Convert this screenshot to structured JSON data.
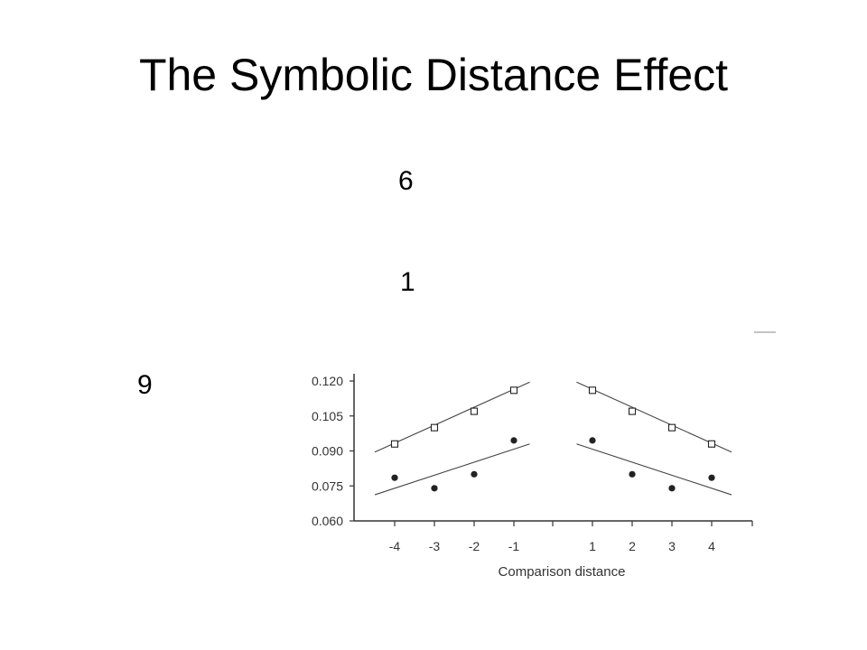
{
  "slide": {
    "title": "The Symbolic Distance Effect",
    "digits": [
      "6",
      "1",
      "9"
    ]
  },
  "chart_data": {
    "type": "scatter",
    "title": "",
    "xlabel": "Comparison distance",
    "ylabel": "",
    "x_ticks": [
      "-4",
      "-3",
      "-2",
      "-1",
      "1",
      "2",
      "3",
      "4"
    ],
    "y_ticks": [
      "0.120",
      "0.105",
      "0.090",
      "0.075",
      "0.060"
    ],
    "ylim": [
      0.06,
      0.12
    ],
    "grid": false,
    "legend": "none",
    "series": [
      {
        "marker": "open-square",
        "x": [
          -4,
          -3,
          -2,
          -1,
          1,
          2,
          3,
          4
        ],
        "y": [
          0.093,
          0.1,
          0.107,
          0.116,
          0.116,
          0.107,
          0.1,
          0.093
        ],
        "fit_left": {
          "x": [
            -4.5,
            -0.6
          ],
          "y": [
            0.0895,
            0.1195
          ]
        },
        "fit_right": {
          "x": [
            0.6,
            4.5
          ],
          "y": [
            0.1195,
            0.0895
          ]
        }
      },
      {
        "marker": "filled-circle",
        "x": [
          -4,
          -3,
          -2,
          -1,
          1,
          2,
          3,
          4
        ],
        "y": [
          0.0785,
          0.074,
          0.08,
          0.0945,
          0.0945,
          0.08,
          0.074,
          0.0785
        ],
        "fit_left": {
          "x": [
            -4.5,
            -0.6
          ],
          "y": [
            0.0712,
            0.093
          ]
        },
        "fit_right": {
          "x": [
            0.6,
            4.5
          ],
          "y": [
            0.093,
            0.0712
          ]
        }
      }
    ],
    "colors": {
      "axis": "#333333",
      "marks": "#222222"
    }
  }
}
